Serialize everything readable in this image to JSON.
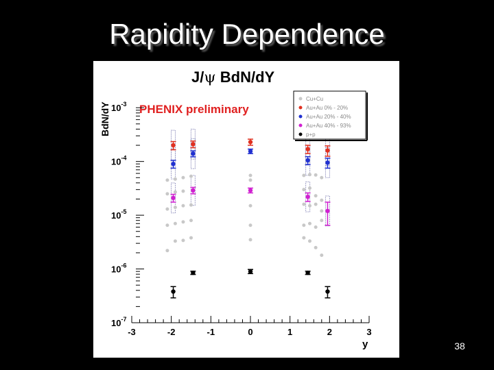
{
  "slide": {
    "title": "Rapidity Dependence",
    "page_number": "38"
  },
  "chart_data": {
    "type": "scatter",
    "title_parts": [
      "J/",
      "ψ",
      " Bd",
      "N/dY"
    ],
    "annotation": "PHENIX preliminary",
    "xlabel": "y",
    "ylabel": "Bd",
    "ylabel_parts": [
      "Bd",
      "N/dY"
    ],
    "xlim": [
      -3,
      3
    ],
    "ylim": [
      1e-07,
      0.0012
    ],
    "y_scale": "log",
    "x_ticks": [
      -3,
      -2,
      -1,
      0,
      1,
      2,
      3
    ],
    "x_tick_labels": [
      "-3",
      "-2",
      "-1",
      "0",
      "1",
      "2",
      "3"
    ],
    "y_ticks": [
      {
        "value": 1e-07,
        "base": "10",
        "exp": "-7"
      },
      {
        "value": 1e-06,
        "base": "10",
        "exp": "-6"
      },
      {
        "value": 1e-05,
        "base": "10",
        "exp": "-5"
      },
      {
        "value": 0.0001,
        "base": "10",
        "exp": "-4"
      },
      {
        "value": 0.001,
        "base": "10",
        "exp": "-3"
      }
    ],
    "grid": false,
    "legend_position": "top-right",
    "series": [
      {
        "name": "Cu+Cu",
        "color": "#c8c8c8",
        "marker": "circle",
        "points": [
          {
            "x": -2.1,
            "y": 1.3e-05
          },
          {
            "x": -1.9,
            "y": 1.4e-05
          },
          {
            "x": -1.7,
            "y": 1.5e-05
          },
          {
            "x": -1.5,
            "y": 1.55e-05
          },
          {
            "x": -2.1,
            "y": 2.5e-05
          },
          {
            "x": -1.9,
            "y": 2.7e-05
          },
          {
            "x": -1.7,
            "y": 2.8e-05
          },
          {
            "x": -2.1,
            "y": 4.5e-05
          },
          {
            "x": -1.9,
            "y": 4.7e-05
          },
          {
            "x": -1.7,
            "y": 5e-05
          },
          {
            "x": -1.5,
            "y": 5.3e-05
          },
          {
            "x": -2.1,
            "y": 6.5e-06
          },
          {
            "x": -1.9,
            "y": 7e-06
          },
          {
            "x": -1.7,
            "y": 7.5e-06
          },
          {
            "x": -1.5,
            "y": 8e-06
          },
          {
            "x": -2.1,
            "y": 2.2e-06
          },
          {
            "x": -1.9,
            "y": 3.3e-06
          },
          {
            "x": -1.7,
            "y": 3.4e-06
          },
          {
            "x": -1.5,
            "y": 3.8e-06
          },
          {
            "x": 0.0,
            "y": 5.5e-05
          },
          {
            "x": 0.0,
            "y": 4.5e-05
          },
          {
            "x": 0.0,
            "y": 1.5e-05
          },
          {
            "x": 0.0,
            "y": 6.5e-06
          },
          {
            "x": 0.0,
            "y": 3.5e-06
          },
          {
            "x": 1.35,
            "y": 5.5e-05
          },
          {
            "x": 1.5,
            "y": 5.7e-05
          },
          {
            "x": 1.65,
            "y": 5.6e-05
          },
          {
            "x": 1.8,
            "y": 5e-05
          },
          {
            "x": 1.35,
            "y": 3e-05
          },
          {
            "x": 1.5,
            "y": 3.2e-05
          },
          {
            "x": 1.65,
            "y": 2.3e-05
          },
          {
            "x": 1.8,
            "y": 1.9e-05
          },
          {
            "x": 1.35,
            "y": 1.6e-05
          },
          {
            "x": 1.5,
            "y": 1.5e-05
          },
          {
            "x": 1.65,
            "y": 1.6e-05
          },
          {
            "x": 1.8,
            "y": 1.2e-05
          },
          {
            "x": 1.35,
            "y": 6.5e-06
          },
          {
            "x": 1.5,
            "y": 7e-06
          },
          {
            "x": 1.65,
            "y": 6e-06
          },
          {
            "x": 1.8,
            "y": 8e-06
          },
          {
            "x": 1.35,
            "y": 3.8e-06
          },
          {
            "x": 1.5,
            "y": 3.3e-06
          },
          {
            "x": 1.65,
            "y": 2.5e-06
          },
          {
            "x": 1.8,
            "y": 1.8e-06
          }
        ]
      },
      {
        "name": "Au+Au 0% - 20%",
        "color": "#e03020",
        "marker": "circle",
        "points": [
          {
            "x": -1.95,
            "y": 0.0002,
            "err": 3.5e-05
          },
          {
            "x": -1.45,
            "y": 0.00021,
            "err": 3e-05
          },
          {
            "x": 0.0,
            "y": 0.00023,
            "err": 3e-05
          },
          {
            "x": 1.45,
            "y": 0.00017,
            "err": 3e-05
          },
          {
            "x": 1.95,
            "y": 0.00016,
            "err": 3.5e-05
          }
        ]
      },
      {
        "name": "Au+Au 20% - 40%",
        "color": "#2030d0",
        "marker": "circle",
        "points": [
          {
            "x": -1.95,
            "y": 9e-05,
            "err": 1.5e-05
          },
          {
            "x": -1.45,
            "y": 0.00014,
            "err": 1.8e-05
          },
          {
            "x": 0.0,
            "y": 0.000155,
            "err": 1.5e-05
          },
          {
            "x": 1.45,
            "y": 0.000105,
            "err": 1.8e-05
          },
          {
            "x": 1.95,
            "y": 9.5e-05,
            "err": 2e-05
          }
        ]
      },
      {
        "name": "Au+Au 40% - 93%",
        "color": "#d020d0",
        "marker": "circle",
        "points": [
          {
            "x": -1.95,
            "y": 2.1e-05,
            "err": 3.5e-06
          },
          {
            "x": -1.45,
            "y": 2.9e-05,
            "err": 4e-06
          },
          {
            "x": 0.0,
            "y": 2.9e-05,
            "err": 3e-06
          },
          {
            "x": 1.45,
            "y": 2.2e-05,
            "err": 4e-06
          },
          {
            "x": 1.95,
            "y": 1.2e-05,
            "err": 5.5e-06
          }
        ]
      },
      {
        "name": "p+p",
        "color": "#000000",
        "marker": "circle",
        "points": [
          {
            "x": -1.95,
            "y": 3.8e-07,
            "err": 9e-08
          },
          {
            "x": -1.45,
            "y": 8.5e-07,
            "err": 6e-08
          },
          {
            "x": 0.0,
            "y": 9e-07,
            "err": 8e-08
          },
          {
            "x": 1.45,
            "y": 8.5e-07,
            "err": 6e-08
          },
          {
            "x": 1.95,
            "y": 3.8e-07,
            "err": 9e-08
          }
        ]
      }
    ]
  }
}
